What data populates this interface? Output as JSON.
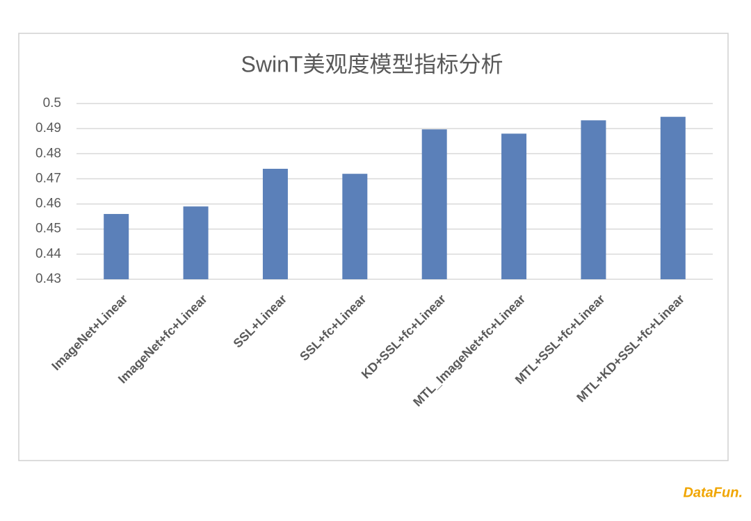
{
  "chart_data": {
    "type": "bar",
    "title": "SwinT美观度模型指标分析",
    "categories": [
      "ImageNet+Linear",
      "ImageNet+fc+Linear",
      "SSL+Linear",
      "SSL+fc+Linear",
      "KD+SSL+fc+Linear",
      "MTL_ImageNet+fc+Linear",
      "MTL+SSL+fc+Linear",
      "MTL+KD+SSL+fc+Linear"
    ],
    "values": [
      0.456,
      0.459,
      0.474,
      0.472,
      0.4897,
      0.488,
      0.4933,
      0.4947
    ],
    "color": "#5b80b9",
    "ylim": [
      0.43,
      0.5
    ],
    "yticks": [
      0.43,
      0.44,
      0.45,
      0.46,
      0.47,
      0.48,
      0.49,
      0.5
    ],
    "grid": true
  },
  "watermark": "DataFun."
}
